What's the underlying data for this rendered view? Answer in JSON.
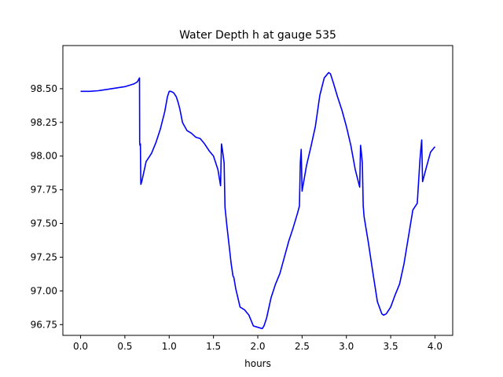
{
  "chart_data": {
    "type": "line",
    "title": "Water Depth h at gauge 535",
    "xlabel": "hours",
    "ylabel": "",
    "xlim": [
      -0.2,
      4.2
    ],
    "ylim": [
      96.67,
      98.82
    ],
    "xticks": [
      0.0,
      0.5,
      1.0,
      1.5,
      2.0,
      2.5,
      3.0,
      3.5,
      4.0
    ],
    "xtick_labels": [
      "0.0",
      "0.5",
      "1.0",
      "1.5",
      "2.0",
      "2.5",
      "3.0",
      "3.5",
      "4.0"
    ],
    "yticks": [
      96.75,
      97.0,
      97.25,
      97.5,
      97.75,
      98.0,
      98.25,
      98.5
    ],
    "ytick_labels": [
      "96.75",
      "97.00",
      "97.25",
      "97.50",
      "97.75",
      "98.00",
      "98.25",
      "98.50"
    ],
    "grid": false,
    "series": [
      {
        "color": "#0000ff",
        "x": [
          0.0,
          0.1,
          0.2,
          0.3,
          0.4,
          0.5,
          0.55,
          0.6,
          0.64,
          0.665,
          0.667,
          0.67,
          0.675,
          0.68,
          0.69,
          0.7,
          0.72,
          0.74,
          0.75,
          0.8,
          0.85,
          0.9,
          0.95,
          0.98,
          1.0,
          1.02,
          1.05,
          1.08,
          1.1,
          1.12,
          1.15,
          1.2,
          1.25,
          1.3,
          1.35,
          1.4,
          1.45,
          1.5,
          1.55,
          1.58,
          1.59,
          1.6,
          1.62,
          1.63,
          1.65,
          1.7,
          1.72,
          1.73,
          1.75,
          1.8,
          1.85,
          1.9,
          1.95,
          2.0,
          2.05,
          2.07,
          2.1,
          2.15,
          2.2,
          2.25,
          2.3,
          2.35,
          2.4,
          2.45,
          2.47,
          2.48,
          2.49,
          2.5,
          2.55,
          2.6,
          2.65,
          2.7,
          2.75,
          2.8,
          2.82,
          2.85,
          2.9,
          2.95,
          3.0,
          3.05,
          3.1,
          3.15,
          3.16,
          3.17,
          3.18,
          3.19,
          3.2,
          3.25,
          3.3,
          3.35,
          3.4,
          3.42,
          3.45,
          3.48,
          3.5,
          3.55,
          3.6,
          3.65,
          3.7,
          3.75,
          3.8,
          3.83,
          3.84,
          3.85,
          3.86,
          3.9,
          3.95,
          4.0
        ],
        "y": [
          98.48,
          98.48,
          98.485,
          98.495,
          98.505,
          98.515,
          98.525,
          98.535,
          98.55,
          98.58,
          98.1,
          98.08,
          98.09,
          97.79,
          97.81,
          97.84,
          97.9,
          97.96,
          97.97,
          98.02,
          98.1,
          98.2,
          98.33,
          98.44,
          98.48,
          98.48,
          98.47,
          98.44,
          98.4,
          98.35,
          98.25,
          98.19,
          98.17,
          98.14,
          98.13,
          98.09,
          98.04,
          98.0,
          97.9,
          97.78,
          98.09,
          98.05,
          97.95,
          97.62,
          97.49,
          97.2,
          97.11,
          97.1,
          97.02,
          96.88,
          96.86,
          96.82,
          96.74,
          96.73,
          96.72,
          96.74,
          96.8,
          96.95,
          97.05,
          97.13,
          97.25,
          97.37,
          97.47,
          97.58,
          97.63,
          97.95,
          98.05,
          97.74,
          97.93,
          98.07,
          98.22,
          98.45,
          98.58,
          98.62,
          98.61,
          98.55,
          98.44,
          98.34,
          98.22,
          98.08,
          97.9,
          97.77,
          98.08,
          98.02,
          97.95,
          97.63,
          97.55,
          97.35,
          97.13,
          96.92,
          96.83,
          96.82,
          96.83,
          96.86,
          96.88,
          96.97,
          97.05,
          97.2,
          97.4,
          97.6,
          97.65,
          97.97,
          98.05,
          98.12,
          97.81,
          97.91,
          98.03,
          98.07
        ]
      }
    ]
  }
}
